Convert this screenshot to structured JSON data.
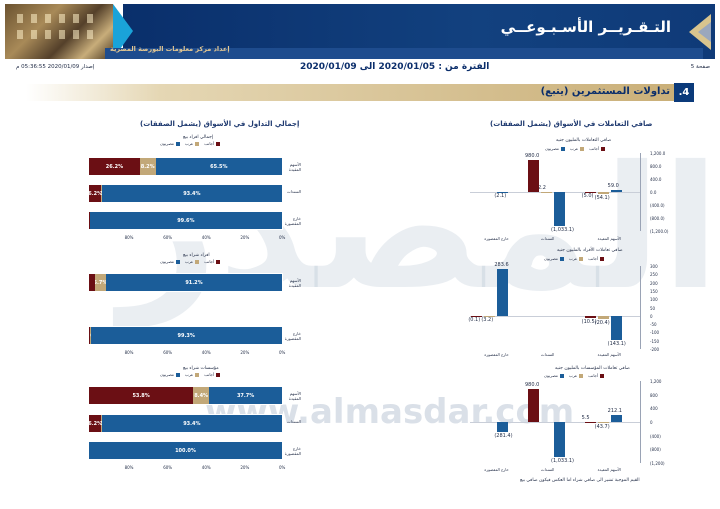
{
  "header": {
    "title": "التـقـريــر الأسـبـوعــي",
    "subtitle": "إعداد مركز معلومات البورصة المصرية"
  },
  "info": {
    "page": "صفحة 5",
    "period": "الفترة من : 2020/01/05 الى 2020/01/09",
    "issued": "إصدار 2020/01/09 05:36:55 م"
  },
  "section": {
    "number": ".4",
    "title": "تداولات المستثمرين (يتبع)"
  },
  "columns": {
    "left_title": "إجمالي التداول في الأسواق (يشمل الصفقات)",
    "right_title": "صافي التعاملات في الأسواق (يشمل الصفقات)"
  },
  "watermark": {
    "brand": "المصدر",
    "url": "www.almasdar.com"
  },
  "colors": {
    "egyptian": "#1b5d99",
    "arab": "#c2a878",
    "foreign": "#6b0f14",
    "axis": "#9aa3b5"
  },
  "legend": {
    "egyptian": "مصريون",
    "arab": "عرب",
    "foreign": "أجانب"
  },
  "row_labels": [
    "الأسهم المقيدة",
    "السندات",
    "خارج المقصورة"
  ],
  "chart_data": [
    {
      "type": "bar",
      "orientation": "horizontal",
      "stacked": "percent",
      "title": "إجمالي افراد بيع",
      "categories": [
        "الأسهم المقيدة",
        "السندات",
        "خارج المقصورة"
      ],
      "series": [
        {
          "name": "مصريون",
          "values": [
            65.5,
            93.4,
            99.6
          ],
          "labels": [
            "65.5%",
            "93.4%",
            "99.6%"
          ]
        },
        {
          "name": "عرب",
          "values": [
            8.2,
            0.3,
            0.2
          ],
          "labels": [
            "8.2%",
            "0.3%",
            "0."
          ]
        },
        {
          "name": "أجانب",
          "values": [
            26.2,
            6.2,
            0.2
          ],
          "labels": [
            "26.2%",
            "6.2%",
            ""
          ]
        }
      ],
      "ticks": [
        "80%",
        "60%",
        "40%",
        "20%",
        "0%"
      ]
    },
    {
      "type": "bar",
      "orientation": "horizontal",
      "stacked": "percent",
      "title": "افراد شراء بيع",
      "categories": [
        "الأسهم المقيدة",
        "خارج المقصورة"
      ],
      "series": [
        {
          "name": "مصريون",
          "values": [
            91.2,
            99.3
          ],
          "labels": [
            "91.2%",
            "99.3%"
          ]
        },
        {
          "name": "عرب",
          "values": [
            5.7,
            0.4
          ],
          "labels": [
            "5.7%",
            "0."
          ]
        },
        {
          "name": "أجانب",
          "values": [
            3.1,
            0.3
          ],
          "labels": [
            "",
            ""
          ]
        }
      ],
      "ticks": [
        "80%",
        "60%",
        "40%",
        "20%",
        "0%"
      ]
    },
    {
      "type": "bar",
      "orientation": "horizontal",
      "stacked": "percent",
      "title": "مؤسسات شراء بيع",
      "categories": [
        "الأسهم المقيدة",
        "السندات",
        "خارج المقصورة"
      ],
      "series": [
        {
          "name": "مصريون",
          "values": [
            37.7,
            93.4,
            100.0
          ],
          "labels": [
            "37.7%",
            "93.4%",
            "100.0%"
          ]
        },
        {
          "name": "عرب",
          "values": [
            8.4,
            0.3,
            0
          ],
          "labels": [
            "8.4%",
            "0.3%",
            ""
          ]
        },
        {
          "name": "أجانب",
          "values": [
            53.8,
            6.2,
            0
          ],
          "labels": [
            "53.8%",
            "6.2%",
            ""
          ]
        }
      ],
      "ticks": [
        "80%",
        "60%",
        "40%",
        "20%",
        "0%"
      ]
    },
    {
      "type": "bar",
      "title": "صافي التعاملات بالمليون جنيه",
      "ylim": [
        -1200,
        1200
      ],
      "yticks": [
        "1,200.0",
        "800.0",
        "400.0",
        "0.0",
        "(400.0)",
        "(800.0)",
        "(1,200.0)"
      ],
      "categories": [
        "الأسهم المقيدة",
        "السندات",
        "خارج المقصورة"
      ],
      "series": [
        {
          "name": "مصريون",
          "values": [
            59.0,
            -1033.1,
            -2.1
          ],
          "labels": [
            "59.0",
            "(1,033.1)",
            "(2.1)"
          ]
        },
        {
          "name": "عرب",
          "values": [
            -54.1,
            2.2,
            0
          ],
          "labels": [
            "(54.1)",
            "2.2",
            ""
          ]
        },
        {
          "name": "أجانب",
          "values": [
            -5.0,
            980.0,
            0
          ],
          "labels": [
            "(5.0)",
            "980.0",
            ""
          ]
        }
      ]
    },
    {
      "type": "bar",
      "title": "صافي تعاملات الأفراد بالمليون جنيه",
      "ylim": [
        -200,
        300
      ],
      "yticks": [
        "300",
        "250",
        "200",
        "150",
        "100",
        "50",
        "0",
        "-50",
        "-100",
        "-150",
        "-200"
      ],
      "categories": [
        "الأسهم المقيدة",
        "السندات",
        "خارج المقصورة"
      ],
      "series": [
        {
          "name": "مصريون",
          "values": [
            -143.1,
            0,
            283.6
          ],
          "labels": [
            "(143.1)",
            "",
            "283.6"
          ]
        },
        {
          "name": "عرب",
          "values": [
            -20.4,
            0,
            -3.2
          ],
          "labels": [
            "(20.4)",
            "",
            "(3.2)"
          ]
        },
        {
          "name": "أجانب",
          "values": [
            -10.5,
            0,
            -0.1
          ],
          "labels": [
            "(10.5)",
            "",
            "(0.1)"
          ]
        }
      ]
    },
    {
      "type": "bar",
      "title": "صافي تعاملات المؤسسات بالمليون جنيه",
      "ylim": [
        -1200,
        1200
      ],
      "yticks": [
        "1,200",
        "800",
        "400",
        "0",
        "(400)",
        "(800)",
        "(1,200)"
      ],
      "categories": [
        "الأسهم المقيدة",
        "السندات",
        "خارج المقصورة"
      ],
      "series": [
        {
          "name": "مصريون",
          "values": [
            212.1,
            -1033.1,
            -281.4
          ],
          "labels": [
            "212.1",
            "(1,033.1)",
            "(281.4)"
          ]
        },
        {
          "name": "عرب",
          "values": [
            -43.7,
            0,
            0
          ],
          "labels": [
            "(43.7)",
            "",
            ""
          ]
        },
        {
          "name": "أجانب",
          "values": [
            5.5,
            980.0,
            0
          ],
          "labels": [
            "5.5",
            "980.0",
            ""
          ]
        }
      ]
    }
  ],
  "footnote": "القيم الموجبة تشير الى صافي شراء اما العكس فيكون صافي بيع"
}
